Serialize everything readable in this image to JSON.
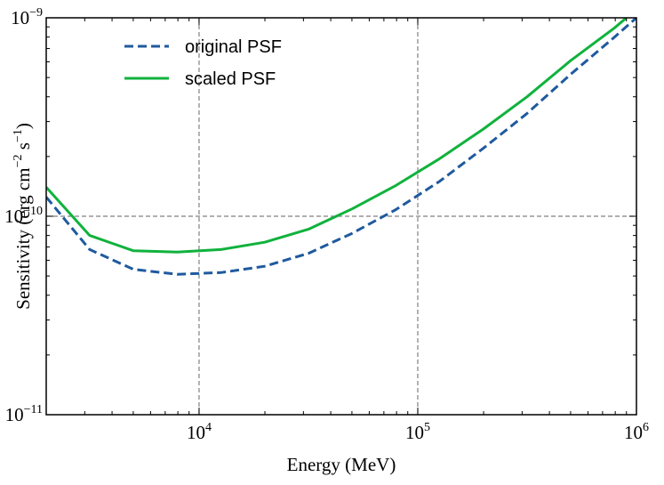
{
  "chart_data": {
    "type": "line",
    "xlabel": "Energy (MeV)",
    "ylabel": {
      "main": "Sensitivity (erg cm",
      "exp1": "−2",
      "mid": " s",
      "exp2": "−1",
      "end": ")"
    },
    "xscale": "log",
    "yscale": "log",
    "xlim": [
      2000,
      1000000
    ],
    "ylim": [
      1e-11,
      1e-09
    ],
    "grid": "dashed at major ticks",
    "x_ticks": [
      {
        "value": 10000,
        "base": "10",
        "exp": "4"
      },
      {
        "value": 100000,
        "base": "10",
        "exp": "5"
      },
      {
        "value": 1000000,
        "base": "10",
        "exp": "6"
      }
    ],
    "y_ticks": [
      {
        "value": 1e-09,
        "base": "10",
        "exp": "−9"
      },
      {
        "value": 1e-10,
        "base": "10",
        "exp": "−10"
      },
      {
        "value": 1e-11,
        "base": "10",
        "exp": "−11"
      }
    ],
    "legend_position": "top-left",
    "series": [
      {
        "name": "original PSF",
        "color": "#1f5a9e",
        "style": "dashed",
        "x": [
          2000,
          3162,
          5012,
          7943,
          12589,
          19953,
          31623,
          50119,
          79433,
          125893,
          199526,
          316228,
          501187,
          794328,
          1000000
        ],
        "y": [
          1.25e-10,
          6.8e-11,
          5.4e-11,
          5.1e-11,
          5.2e-11,
          5.6e-11,
          6.5e-11,
          8.2e-11,
          1.08e-10,
          1.5e-10,
          2.2e-10,
          3.3e-10,
          5.2e-10,
          8e-10,
          1e-09
        ]
      },
      {
        "name": "scaled PSF",
        "color": "#10b23c",
        "style": "solid",
        "x": [
          2000,
          3162,
          5012,
          7943,
          12589,
          19953,
          31623,
          50119,
          79433,
          125893,
          199526,
          316228,
          501187,
          794328,
          900000
        ],
        "y": [
          1.4e-10,
          8e-11,
          6.7e-11,
          6.6e-11,
          6.8e-11,
          7.4e-11,
          8.6e-11,
          1.09e-10,
          1.43e-10,
          1.95e-10,
          2.75e-10,
          4e-10,
          6.1e-10,
          8.9e-10,
          1e-09
        ]
      }
    ]
  }
}
